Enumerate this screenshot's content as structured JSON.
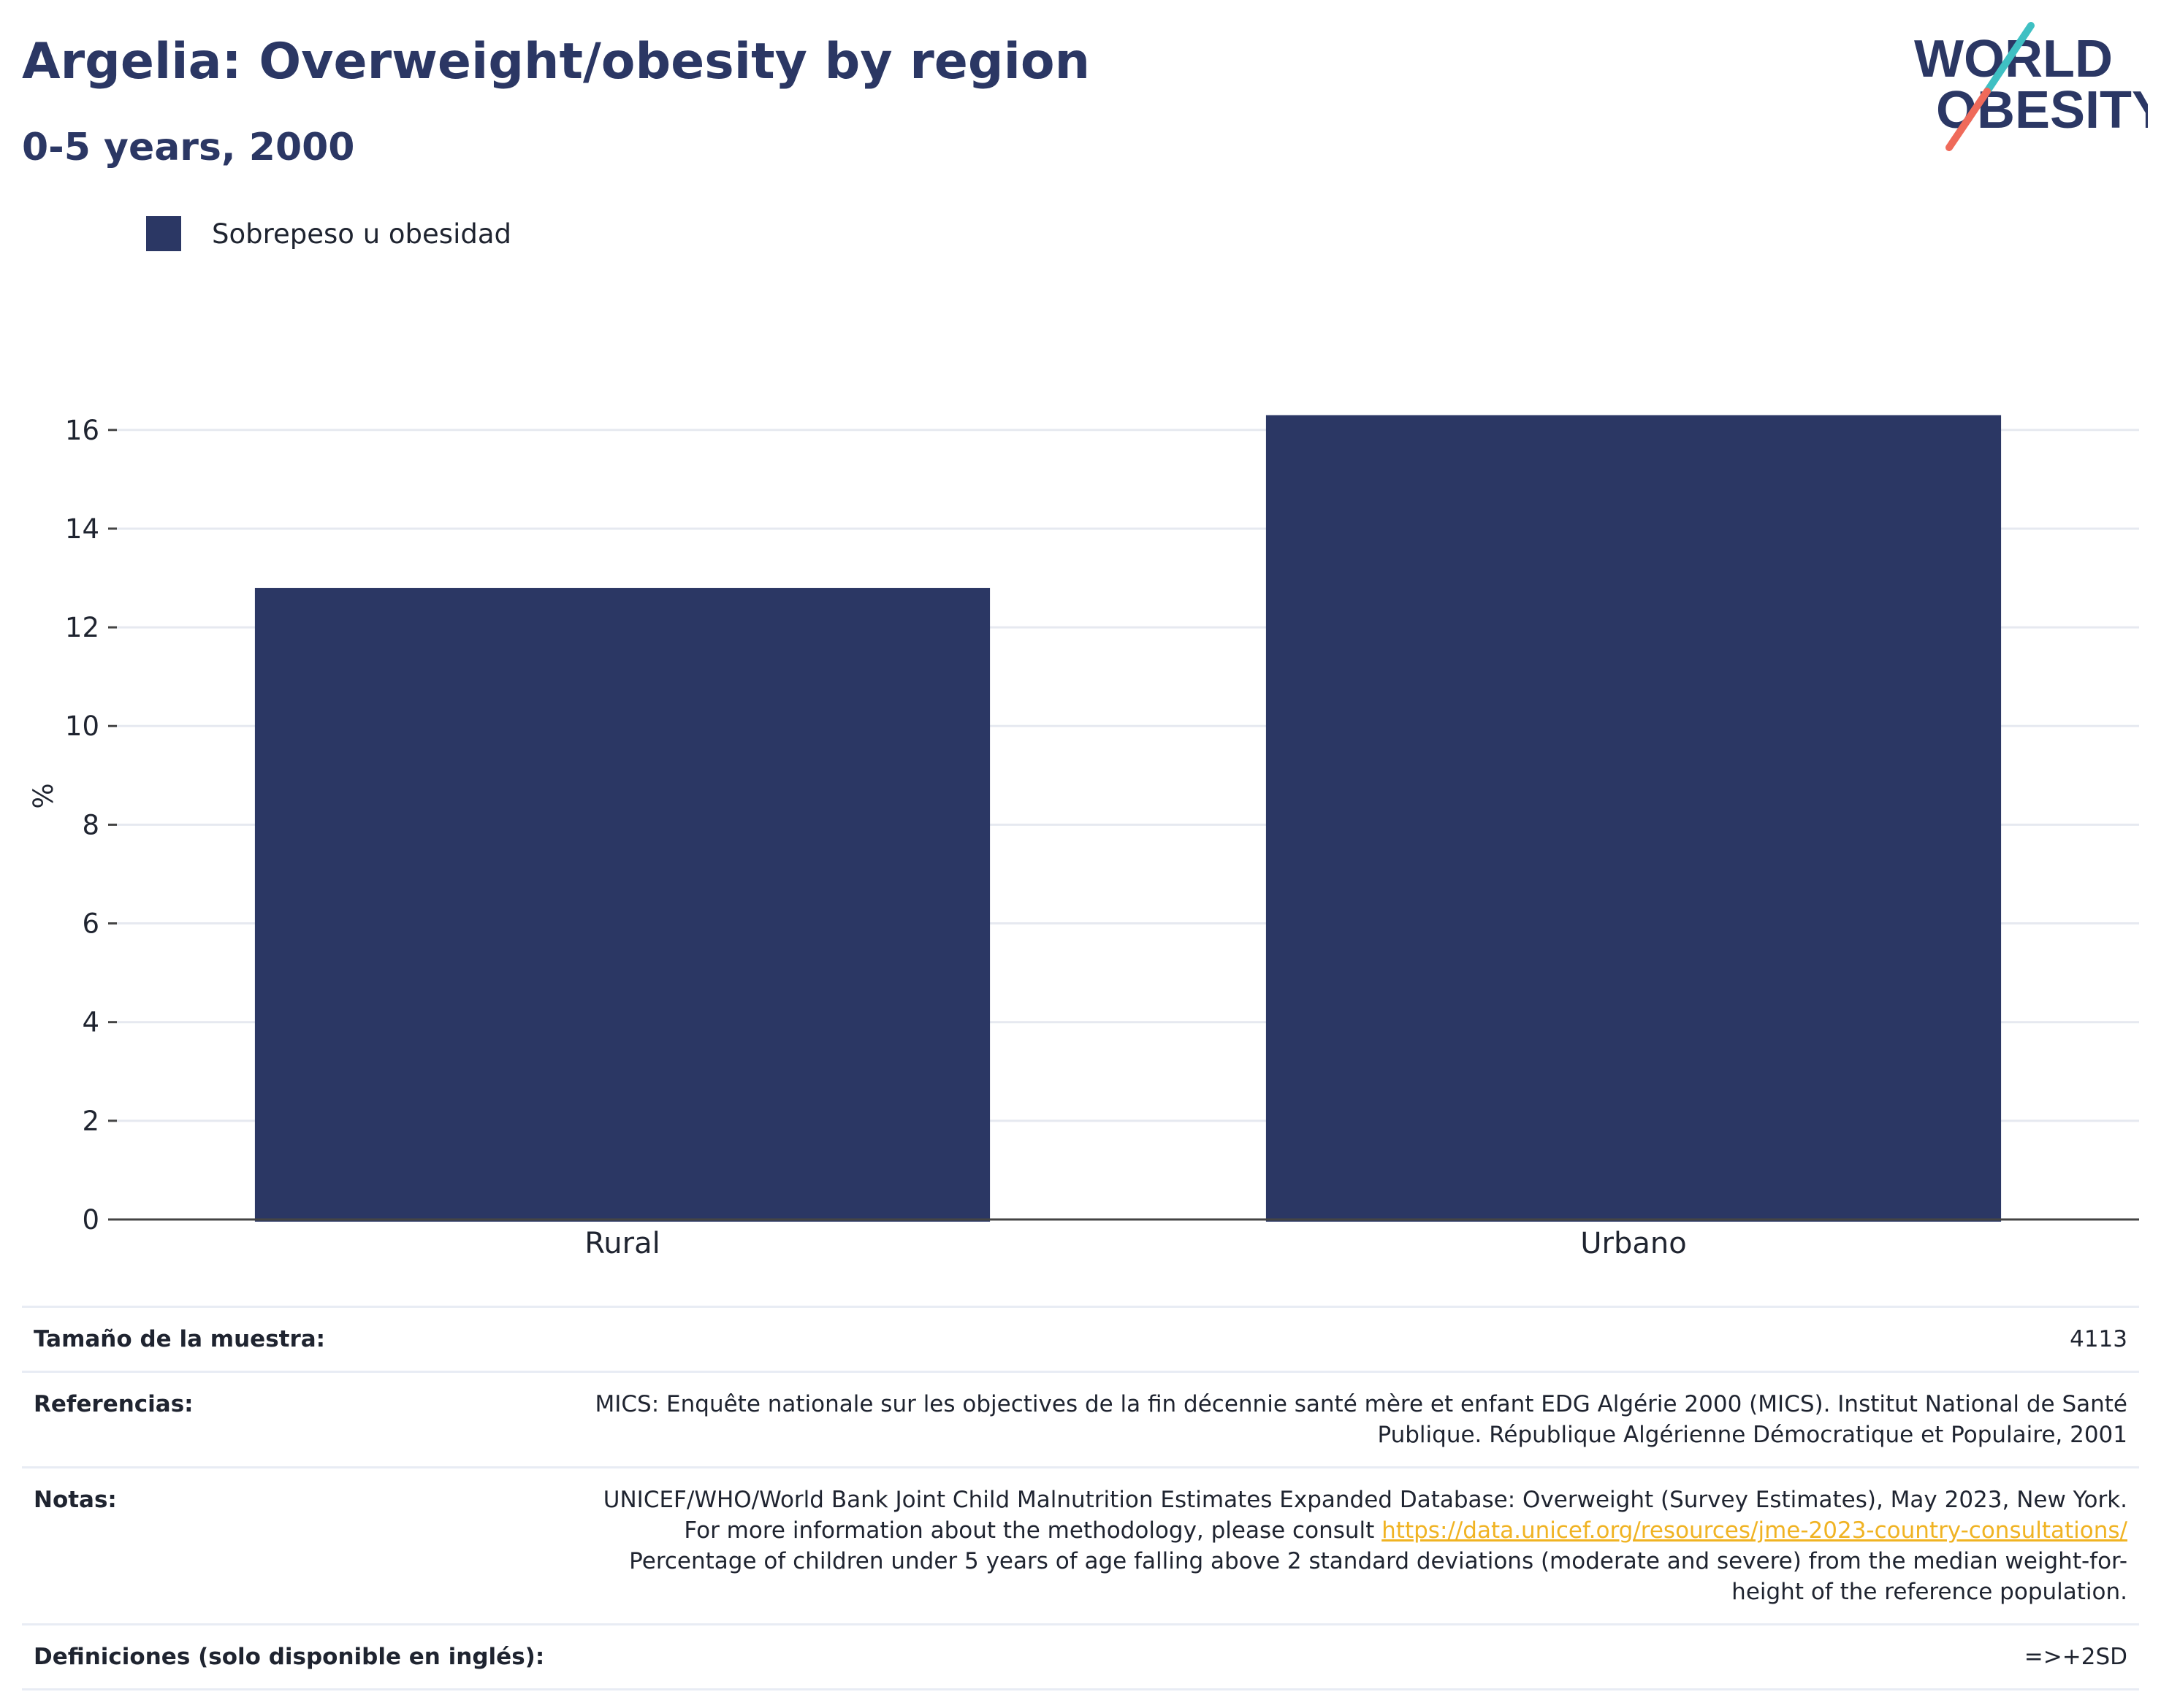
{
  "header": {
    "title": "Argelia: Overweight/obesity by region",
    "subtitle": "0-5 years, 2000"
  },
  "logo": {
    "line1": "WORLD",
    "line2": "OBESITY",
    "color_text": "#2b3764",
    "color_slash_top": "#3fc0c3",
    "color_slash_bottom": "#ef6a5a"
  },
  "legend": {
    "label": "Sobrepeso u obesidad",
    "color": "#2b3764"
  },
  "chart_data": {
    "type": "bar",
    "categories": [
      "Rural",
      "Urbano"
    ],
    "series": [
      {
        "name": "Sobrepeso u obesidad",
        "values": [
          12.8,
          16.3
        ],
        "color": "#2b3764"
      }
    ],
    "ylabel": "%",
    "ylim": [
      0,
      16.5
    ],
    "yticks": [
      0,
      2,
      4,
      6,
      8,
      10,
      12,
      14,
      16
    ],
    "grid": true,
    "legend_position": "top-left"
  },
  "info": {
    "sample_size_label": "Tamaño de la muestra:",
    "sample_size_value": "4113",
    "references_label": "Referencias:",
    "references_value": "MICS: Enquête nationale sur les objectives de la fin décennie santé mère et enfant EDG Algérie 2000 (MICS). Institut National de Santé Publique. République Algérienne Démocratique et Populaire, 2001",
    "notes_label": "Notas:",
    "notes_text_before": "UNICEF/WHO/World Bank Joint Child Malnutrition Estimates Expanded Database: Overweight (Survey Estimates), May 2023, New York. For more information about the methodology, please consult",
    "notes_link": "https://data.unicef.org/resources/jme-2023-country-consultations/",
    "notes_text_after": "Percentage of children under 5 years of age falling above 2 standard deviations (moderate and severe) from the median weight-for-height of the reference population.",
    "definitions_label": "Definiciones (solo disponible en inglés):",
    "definitions_value": "=>+2SD"
  }
}
